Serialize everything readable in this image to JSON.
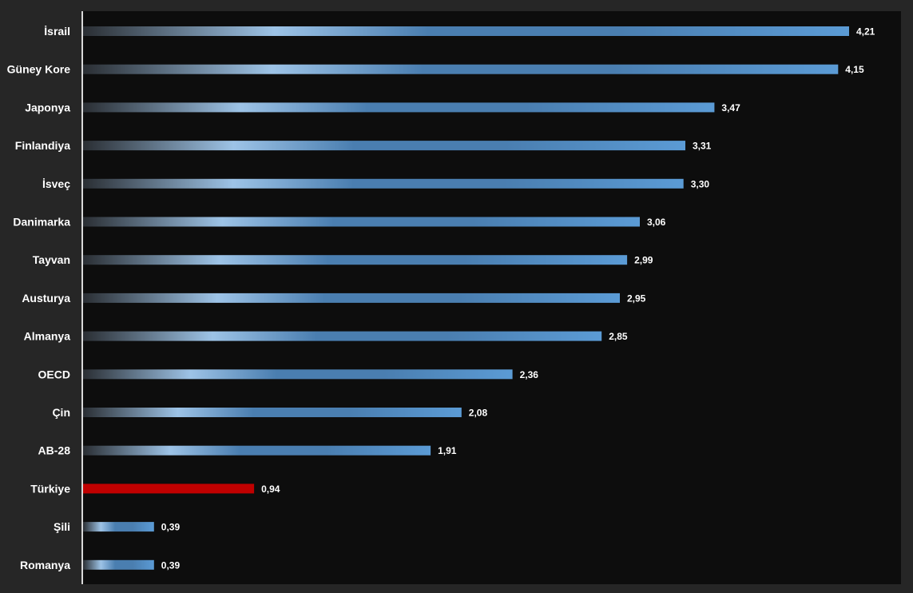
{
  "chart_data": {
    "type": "bar",
    "orientation": "horizontal",
    "categories": [
      "İsrail",
      "Güney Kore",
      "Japonya",
      "Finlandiya",
      "İsveç",
      "Danimarka",
      "Tayvan",
      "Austurya",
      "Almanya",
      "OECD",
      "Çin",
      "AB-28",
      "Türkiye",
      "Şili",
      "Romanya"
    ],
    "values": [
      4.21,
      4.15,
      3.47,
      3.31,
      3.3,
      3.06,
      2.99,
      2.95,
      2.85,
      2.36,
      2.08,
      1.91,
      0.94,
      0.39,
      0.39
    ],
    "value_labels": [
      "4,21",
      "4,15",
      "3,47",
      "3,31",
      "3,30",
      "3,06",
      "2,99",
      "2,95",
      "2,85",
      "2,36",
      "2,08",
      "1,91",
      "0,94",
      "0,39",
      "0,39"
    ],
    "highlight_category": "Türkiye",
    "title": "",
    "xlabel": "",
    "ylabel": "",
    "xlim": [
      0,
      4.21
    ],
    "grid": false,
    "legend": "none"
  },
  "colors": {
    "page_background": "#262626",
    "plot_background": "#0d0d0d",
    "axis_line": "#d9d9d9",
    "bar_dark": "#2a2e33",
    "bar_light": "#9dc3e6",
    "bar_mid": "#4a7eb0",
    "bar_end": "#5b9bd5",
    "highlight": "#c00000",
    "text": "#ffffff"
  }
}
